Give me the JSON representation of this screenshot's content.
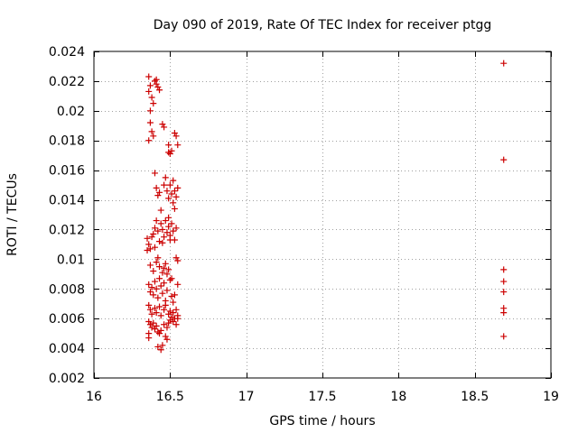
{
  "chart_data": {
    "type": "scatter",
    "title": "Day 090 of 2019, Rate Of TEC Index for receiver ptgg",
    "xlabel": "GPS time / hours",
    "ylabel": "ROTI / TECUs",
    "xlim": [
      16,
      19
    ],
    "ylim": [
      0.002,
      0.024
    ],
    "x_ticks": [
      16,
      16.5,
      17,
      17.5,
      18,
      18.5,
      19
    ],
    "x_tick_labels": [
      "16",
      "16.5",
      "17",
      "17.5",
      "18",
      "18.5",
      "19"
    ],
    "y_ticks": [
      0.002,
      0.004,
      0.006,
      0.008,
      0.01,
      0.012,
      0.014,
      0.016,
      0.018,
      0.02,
      0.022,
      0.024
    ],
    "y_tick_labels": [
      "0.002",
      "0.004",
      "0.006",
      "0.008",
      "0.01",
      "0.012",
      "0.014",
      "0.016",
      "0.018",
      "0.02",
      "0.022",
      "0.024"
    ],
    "grid": true,
    "marker": "+",
    "color": "#cc0000",
    "series": [
      {
        "name": "ROTI",
        "points": [
          [
            16.36,
            0.0223
          ],
          [
            16.37,
            0.0217
          ],
          [
            16.36,
            0.0213
          ],
          [
            16.38,
            0.0209
          ],
          [
            16.39,
            0.0205
          ],
          [
            16.37,
            0.02
          ],
          [
            16.37,
            0.0192
          ],
          [
            16.38,
            0.0186
          ],
          [
            16.36,
            0.018
          ],
          [
            16.39,
            0.0183
          ],
          [
            16.4,
            0.022
          ],
          [
            16.41,
            0.0218
          ],
          [
            16.42,
            0.0216
          ],
          [
            16.43,
            0.0214
          ],
          [
            16.41,
            0.0221
          ],
          [
            16.45,
            0.0191
          ],
          [
            16.46,
            0.0189
          ],
          [
            16.49,
            0.0177
          ],
          [
            16.49,
            0.0172
          ],
          [
            16.5,
            0.0171
          ],
          [
            16.51,
            0.0173
          ],
          [
            16.53,
            0.0185
          ],
          [
            16.54,
            0.0183
          ],
          [
            16.55,
            0.0177
          ],
          [
            16.4,
            0.0158
          ],
          [
            16.41,
            0.0148
          ],
          [
            16.42,
            0.0143
          ],
          [
            16.43,
            0.0145
          ],
          [
            16.44,
            0.0133
          ],
          [
            16.46,
            0.015
          ],
          [
            16.47,
            0.0155
          ],
          [
            16.48,
            0.0146
          ],
          [
            16.49,
            0.0141
          ],
          [
            16.5,
            0.015
          ],
          [
            16.51,
            0.0144
          ],
          [
            16.52,
            0.0153
          ],
          [
            16.53,
            0.0146
          ],
          [
            16.54,
            0.0142
          ],
          [
            16.55,
            0.0148
          ],
          [
            16.52,
            0.0138
          ],
          [
            16.53,
            0.0134
          ],
          [
            16.49,
            0.0128
          ],
          [
            16.35,
            0.0114
          ],
          [
            16.36,
            0.011
          ],
          [
            16.37,
            0.0107
          ],
          [
            16.38,
            0.0115
          ],
          [
            16.39,
            0.0117
          ],
          [
            16.4,
            0.0121
          ],
          [
            16.41,
            0.0126
          ],
          [
            16.42,
            0.0119
          ],
          [
            16.43,
            0.0112
          ],
          [
            16.44,
            0.0124
          ],
          [
            16.45,
            0.012
          ],
          [
            16.46,
            0.0115
          ],
          [
            16.47,
            0.0126
          ],
          [
            16.48,
            0.0118
          ],
          [
            16.49,
            0.0122
          ],
          [
            16.5,
            0.0116
          ],
          [
            16.51,
            0.0124
          ],
          [
            16.52,
            0.0119
          ],
          [
            16.53,
            0.0113
          ],
          [
            16.54,
            0.0121
          ],
          [
            16.35,
            0.0106
          ],
          [
            16.4,
            0.0108
          ],
          [
            16.45,
            0.0111
          ],
          [
            16.5,
            0.0113
          ],
          [
            16.37,
            0.0096
          ],
          [
            16.39,
            0.0092
          ],
          [
            16.41,
            0.0098
          ],
          [
            16.43,
            0.0095
          ],
          [
            16.45,
            0.0091
          ],
          [
            16.47,
            0.0097
          ],
          [
            16.48,
            0.009
          ],
          [
            16.49,
            0.0093
          ],
          [
            16.51,
            0.0087
          ],
          [
            16.54,
            0.0101
          ],
          [
            16.55,
            0.0099
          ],
          [
            16.42,
            0.0101
          ],
          [
            16.46,
            0.0094
          ],
          [
            16.36,
            0.0083
          ],
          [
            16.37,
            0.0078
          ],
          [
            16.38,
            0.0081
          ],
          [
            16.39,
            0.0076
          ],
          [
            16.4,
            0.0085
          ],
          [
            16.41,
            0.008
          ],
          [
            16.42,
            0.0074
          ],
          [
            16.43,
            0.0087
          ],
          [
            16.44,
            0.0082
          ],
          [
            16.45,
            0.0077
          ],
          [
            16.46,
            0.0084
          ],
          [
            16.47,
            0.0072
          ],
          [
            16.48,
            0.0079
          ],
          [
            16.5,
            0.0086
          ],
          [
            16.51,
            0.0075
          ],
          [
            16.52,
            0.0071
          ],
          [
            16.53,
            0.0076
          ],
          [
            16.55,
            0.0083
          ],
          [
            16.36,
            0.0069
          ],
          [
            16.37,
            0.0066
          ],
          [
            16.38,
            0.0063
          ],
          [
            16.4,
            0.0067
          ],
          [
            16.41,
            0.0064
          ],
          [
            16.43,
            0.0068
          ],
          [
            16.44,
            0.0062
          ],
          [
            16.46,
            0.0066
          ],
          [
            16.47,
            0.0069
          ],
          [
            16.49,
            0.0063
          ],
          [
            16.5,
            0.0065
          ],
          [
            16.51,
            0.0061
          ],
          [
            16.52,
            0.0064
          ],
          [
            16.53,
            0.006
          ],
          [
            16.54,
            0.0066
          ],
          [
            16.55,
            0.0062
          ],
          [
            16.36,
            0.0058
          ],
          [
            16.37,
            0.0056
          ],
          [
            16.38,
            0.0054
          ],
          [
            16.39,
            0.0057
          ],
          [
            16.4,
            0.0053
          ],
          [
            16.41,
            0.0055
          ],
          [
            16.42,
            0.0051
          ],
          [
            16.43,
            0.005
          ],
          [
            16.44,
            0.0052
          ],
          [
            16.46,
            0.0056
          ],
          [
            16.47,
            0.0048
          ],
          [
            16.48,
            0.0054
          ],
          [
            16.49,
            0.0057
          ],
          [
            16.5,
            0.0059
          ],
          [
            16.52,
            0.0058
          ],
          [
            16.54,
            0.0056
          ],
          [
            16.55,
            0.006
          ],
          [
            16.36,
            0.005
          ],
          [
            16.36,
            0.0047
          ],
          [
            16.42,
            0.0041
          ],
          [
            16.44,
            0.0039
          ],
          [
            16.45,
            0.0042
          ],
          [
            16.48,
            0.0046
          ],
          [
            18.69,
            0.0232
          ],
          [
            18.69,
            0.0167
          ],
          [
            18.69,
            0.0093
          ],
          [
            18.69,
            0.0085
          ],
          [
            18.69,
            0.0078
          ],
          [
            18.69,
            0.0067
          ],
          [
            18.69,
            0.0064
          ],
          [
            18.69,
            0.0048
          ]
        ]
      }
    ]
  }
}
